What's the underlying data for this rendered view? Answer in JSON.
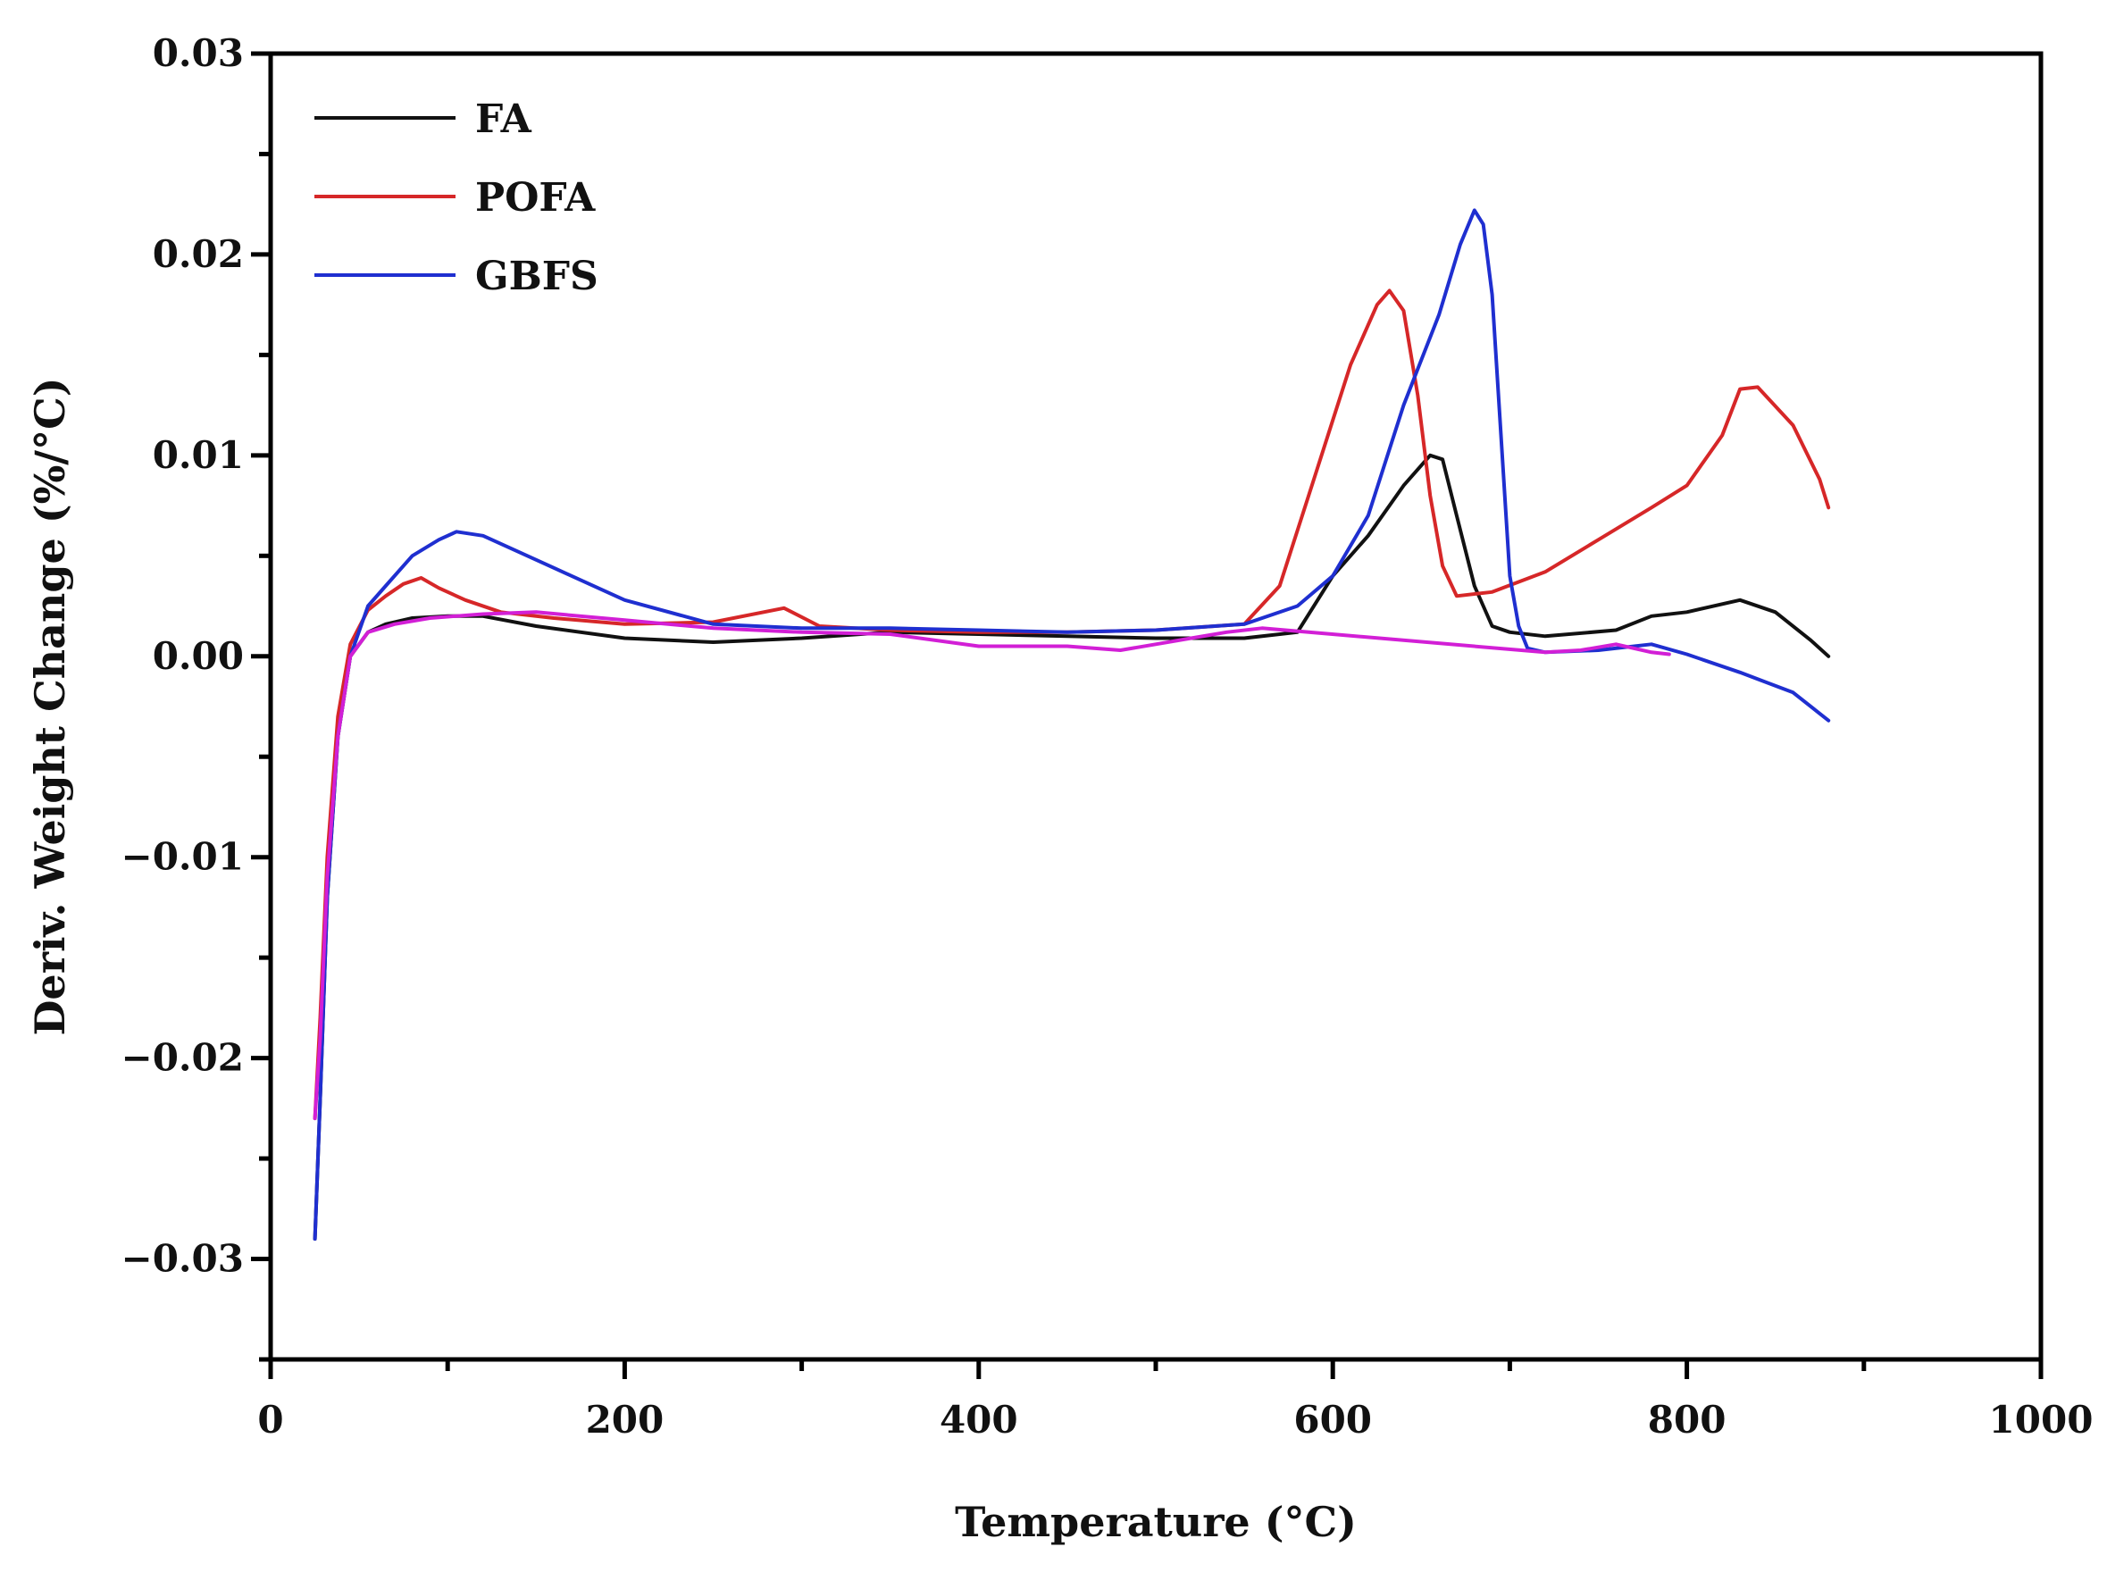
{
  "chart_data": {
    "type": "line",
    "title": "",
    "xlabel": "Temperature (°C)",
    "ylabel": "Deriv. Weight Change (%/°C)",
    "xlim": [
      0,
      1000
    ],
    "ylim": [
      -0.035,
      0.03
    ],
    "xticks": [
      0,
      200,
      400,
      600,
      800,
      1000
    ],
    "xtick_labels": [
      "0",
      "200",
      "400",
      "600",
      "800",
      "1000"
    ],
    "yticks": [
      -0.03,
      -0.02,
      -0.01,
      0.0,
      0.01,
      0.02,
      0.03
    ],
    "ytick_labels": [
      "−0.03",
      "−0.02",
      "−0.01",
      "0.00",
      "0.01",
      "0.02",
      "0.03"
    ],
    "grid": false,
    "legend_position": "top-left",
    "series": [
      {
        "name": "FA",
        "color": "#111111",
        "x": [
          25,
          28,
          32,
          38,
          45,
          55,
          65,
          80,
          100,
          120,
          150,
          200,
          250,
          300,
          350,
          400,
          450,
          500,
          550,
          580,
          600,
          620,
          640,
          655,
          662,
          670,
          680,
          690,
          700,
          720,
          760,
          780,
          800,
          830,
          850,
          870,
          880
        ],
        "y": [
          -0.029,
          -0.022,
          -0.012,
          -0.004,
          0.0,
          0.0012,
          0.0016,
          0.0019,
          0.002,
          0.002,
          0.0015,
          0.0009,
          0.0007,
          0.0009,
          0.0012,
          0.0011,
          0.001,
          0.0009,
          0.0009,
          0.0012,
          0.004,
          0.006,
          0.0085,
          0.01,
          0.0098,
          0.007,
          0.0035,
          0.0015,
          0.0012,
          0.001,
          0.0013,
          0.002,
          0.0022,
          0.0028,
          0.0022,
          0.0008,
          0.0
        ]
      },
      {
        "name": "POFA",
        "color": "#d62728",
        "x": [
          25,
          28,
          32,
          38,
          45,
          55,
          65,
          75,
          85,
          95,
          110,
          130,
          160,
          200,
          250,
          290,
          310,
          350,
          400,
          450,
          500,
          550,
          570,
          590,
          610,
          625,
          632,
          640,
          648,
          655,
          662,
          670,
          690,
          720,
          750,
          780,
          800,
          820,
          830,
          840,
          860,
          875,
          880
        ],
        "y": [
          -0.023,
          -0.018,
          -0.01,
          -0.003,
          0.0006,
          0.0023,
          0.003,
          0.0036,
          0.0039,
          0.0034,
          0.0028,
          0.0022,
          0.0019,
          0.0016,
          0.0017,
          0.0024,
          0.0015,
          0.0013,
          0.0012,
          0.0012,
          0.0013,
          0.0016,
          0.0035,
          0.009,
          0.0145,
          0.0175,
          0.0182,
          0.0172,
          0.013,
          0.008,
          0.0045,
          0.003,
          0.0032,
          0.0042,
          0.0058,
          0.0074,
          0.0085,
          0.011,
          0.0133,
          0.0134,
          0.0115,
          0.0088,
          0.0074
        ]
      },
      {
        "name": "GBFS",
        "color": "#1f2fd0",
        "x": [
          25,
          28,
          32,
          38,
          45,
          55,
          65,
          80,
          95,
          105,
          120,
          140,
          170,
          200,
          250,
          300,
          350,
          400,
          450,
          500,
          550,
          580,
          600,
          620,
          640,
          660,
          672,
          680,
          685,
          690,
          695,
          700,
          705,
          710,
          720,
          750,
          780,
          800,
          830,
          860,
          880
        ],
        "y": [
          -0.029,
          -0.022,
          -0.012,
          -0.004,
          0.0,
          0.0025,
          0.0035,
          0.005,
          0.0058,
          0.0062,
          0.006,
          0.0052,
          0.004,
          0.0028,
          0.0016,
          0.0014,
          0.0014,
          0.0013,
          0.0012,
          0.0013,
          0.0016,
          0.0025,
          0.004,
          0.007,
          0.0125,
          0.017,
          0.0205,
          0.0222,
          0.0215,
          0.018,
          0.011,
          0.004,
          0.0015,
          0.0004,
          0.0002,
          0.0003,
          0.0006,
          0.0001,
          -0.0008,
          -0.0018,
          -0.0032
        ]
      },
      {
        "name": "",
        "color": "#d21fd6",
        "x": [
          25,
          28,
          32,
          38,
          45,
          55,
          70,
          90,
          120,
          150,
          200,
          250,
          300,
          350,
          400,
          450,
          480,
          500,
          520,
          540,
          560,
          720,
          740,
          760,
          770,
          780,
          790
        ],
        "y": [
          -0.023,
          -0.019,
          -0.011,
          -0.004,
          0.0,
          0.0012,
          0.0016,
          0.0019,
          0.0021,
          0.0022,
          0.0018,
          0.0014,
          0.0012,
          0.0011,
          0.0005,
          0.0005,
          0.0003,
          0.0006,
          0.0009,
          0.0012,
          0.0014,
          0.0002,
          0.0003,
          0.0006,
          0.0004,
          0.0002,
          0.0001
        ]
      }
    ]
  }
}
